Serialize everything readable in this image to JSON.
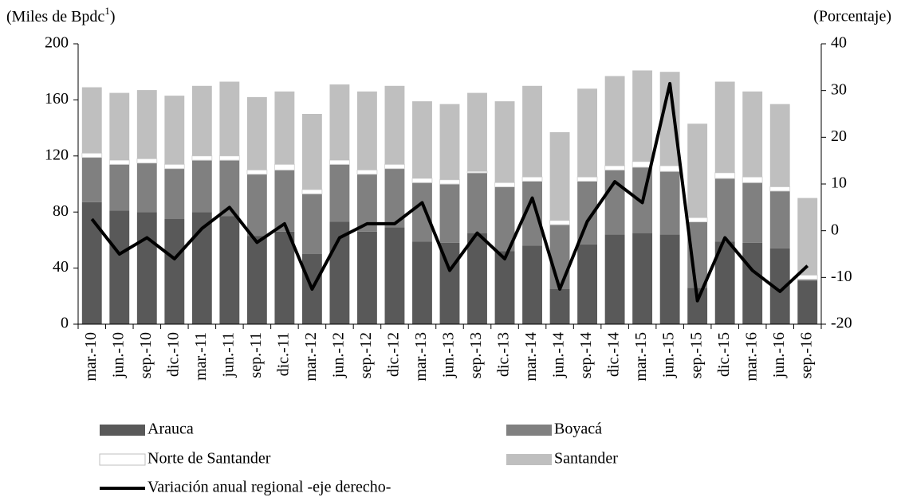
{
  "chart_data": {
    "type": "stacked_bar_line",
    "y_label": [
      "(Miles de Bpdc",
      "1",
      ")"
    ],
    "y2_label": "(Porcentaje)",
    "categories": [
      "mar.-10",
      "jun.-10",
      "sep.-10",
      "dic.-10",
      "mar.-11",
      "jun.-11",
      "sep.-11",
      "dic.-11",
      "mar.-12",
      "jun.-12",
      "sep.-12",
      "dic.-12",
      "mar.-13",
      "jun.-13",
      "sep.-13",
      "dic.-13",
      "mar.-14",
      "jun.-14",
      "sep.-14",
      "dic.-14",
      "mar.-15",
      "jun.-15",
      "sep.-15",
      "dic.-15",
      "mar.-16",
      "jun.-16",
      "sep.-16"
    ],
    "series": [
      {
        "name": "Arauca",
        "color": "#595959",
        "values": [
          87,
          81,
          80,
          75,
          80,
          77,
          63,
          66,
          50,
          73,
          66,
          69,
          59,
          58,
          65,
          52,
          56,
          25,
          57,
          64,
          65,
          64,
          26,
          59,
          58,
          54,
          31
        ]
      },
      {
        "name": "Boyacá",
        "color": "#808080",
        "values": [
          32,
          33,
          35,
          36,
          37,
          40,
          44,
          44,
          43,
          41,
          41,
          42,
          42,
          42,
          43,
          46,
          46,
          46,
          45,
          46,
          47,
          45,
          47,
          45,
          43,
          41,
          1
        ]
      },
      {
        "name": "Norte de Santander",
        "color": "#ffffff",
        "values": [
          3,
          3,
          3,
          3,
          3,
          3,
          3,
          4,
          3,
          3,
          3,
          3,
          3,
          3,
          1,
          3,
          3,
          3,
          3,
          3,
          4,
          4,
          3,
          4,
          4,
          3,
          3
        ]
      },
      {
        "name": "Santander",
        "color": "#bfbfbf",
        "values": [
          47,
          48,
          49,
          49,
          50,
          53,
          52,
          52,
          54,
          54,
          56,
          56,
          55,
          54,
          56,
          58,
          65,
          63,
          63,
          64,
          65,
          67,
          67,
          65,
          61,
          59,
          55
        ]
      }
    ],
    "line": {
      "name": "Variación anual regional -eje derecho-",
      "color": "#000000",
      "axis": "y2",
      "values": [
        2.5,
        -5,
        -1.5,
        -6,
        0.5,
        5,
        -2.5,
        1.5,
        -12.5,
        -1.5,
        1.5,
        1.5,
        6,
        -8.5,
        -0.5,
        -6,
        7,
        -12.5,
        2,
        10.5,
        6,
        31.5,
        -15,
        -1.5,
        -8.5,
        -13,
        -7.5
      ]
    },
    "ylim": [
      0,
      200
    ],
    "yticks": [
      0,
      40,
      80,
      120,
      160,
      200
    ],
    "y2lim": [
      -20,
      40
    ],
    "y2ticks": [
      -20,
      -10,
      0,
      10,
      20,
      30,
      40
    ]
  }
}
